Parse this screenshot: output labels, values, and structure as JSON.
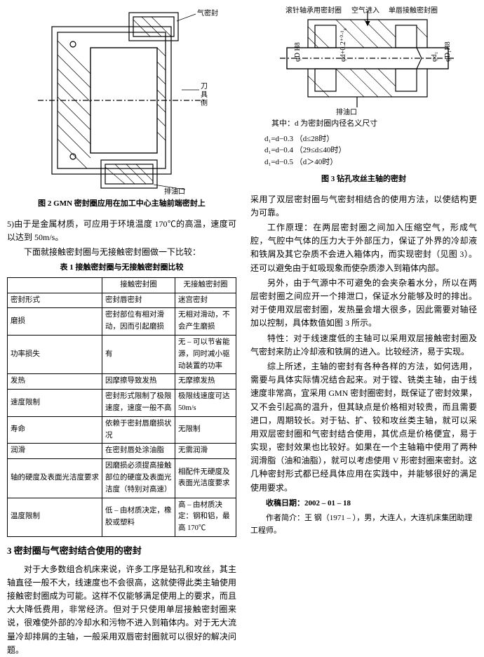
{
  "left": {
    "fig2": {
      "labels": {
        "qimifeng": "气密封",
        "daojuce": "刀具侧",
        "paiyoukou": "排油口"
      },
      "caption": "图 2  GMN 密封圈应用在加工中心主轴前端密封上",
      "stroke": "#000000"
    },
    "p5": "5)由于是金属材质，可应用于环境温度 170℃的高温，速度可以达到 50m/s。",
    "p6": "下面就接触密封圈与无接触密封圈做一下比较：",
    "table1": {
      "title": "表 1  接触密封圈与无接触密封圈比较",
      "header": [
        "",
        "接触密封圈",
        "无接触密封圈"
      ],
      "rows": [
        [
          "密封形式",
          "密封唇密封",
          "迷宫密封"
        ],
        [
          "磨损",
          "密封部位有相对滑动，因而引起磨损",
          "无相对滑动，不会产生磨损"
        ],
        [
          "功率损失",
          "有",
          "无 – 可以节省能源，同时减小驱动装置的功率"
        ],
        [
          "发热",
          "因摩擦导致发热",
          "无摩擦发热"
        ],
        [
          "速度限制",
          "密封形式限制了极限速度，速度一般不高",
          "极限线速度可达 50m/s"
        ],
        [
          "寿命",
          "依赖于密封唇磨损状况",
          "无限制"
        ],
        [
          "润滑",
          "在密封唇处涂油脂",
          "无需润滑"
        ],
        [
          "轴的硬度及表面光洁度要求",
          "因磨损必须提高接触部位的硬度及表面光洁度（特别对高速）",
          "相配件无硬度及表面光洁度要求"
        ],
        [
          "温度限制",
          "低 – 由材质决定，橡胶或塑料",
          "高 – 由材质决定：钢和铝，最高 170℃"
        ]
      ]
    },
    "section3": {
      "title": "3  密封圈与气密封结合使用的密封",
      "p1": "对于大多数组合机床来说，许多工序是钻孔和攻丝，其主轴直径一般不大，线速度也不会很高，这就使得此类主轴使用接触密封圈成为可能。这样不仅能够满足使用上的要求，而且大大降低费用，非常经济。但对于只使用单层接触密封圈来说，很难使外部的冷却水和污物不进入到箱体内。对于无大流量冷却排屑的主轴，一般采用双唇密封圈就可以很好的解决问题。"
    }
  },
  "right": {
    "fig3": {
      "labels": {
        "gunzhen": "滚针轴承用密封圈",
        "kongqi": "空气进入",
        "danchun": "单唇接触密封圈",
        "paiyoukou": "排油口",
        "dH8": "φD H8",
        "d02": "φd+0.2⁺⁰·¹₀",
        "d1": "φd₁",
        "D1H8": "φD₁H8"
      },
      "note_head": "其中：d 为密封圈内径名义尺寸",
      "formula1": "d₁=d−0.3   （d≤28时）",
      "formula2": "d₁=d−0.4   （29≤d≤40时）",
      "formula3": "d₁=d−0.5   （d＞40时）",
      "caption": "图 3  钻孔攻丝主轴的密封",
      "stroke": "#000000"
    },
    "p1": "采用了双层密封圈与气密封相结合的使用方法，以使结构更为可靠。",
    "p2": "工作原理：在两层密封圈之间加入压缩空气，形成气腔，气腔中气体的压力大于外部压力，保证了外界的冷却液和铁屑及其它杂质不会进入箱体内，而实现密封（见图 3）。还可以避免由于虹吸现象而使杂质渗入到箱体内部。",
    "p3": "另外，由于气源中不可避免的会夹杂着水分，所以在两层密封圈之间应开一个排泄口，保证水分能够及时的排出。对于使用双层密封圈，发热量会增大很多，因此需要对轴径加以控制，具体数值如图 3 所示。",
    "p4": "特性：对于线速度低的主轴可以采用双层接触密封圈及气密封来防止冷却液和铁屑的进入。比较经济，易于实现。",
    "p5": "综上所述，主轴的密封有各种各样的方法，如何选用，需要与具体实际情况结合起来。对于镗、铣类主轴，由于线速度非常高，宜采用 GMN 密封圈密封，既保证了密封效果，又不会引起高的温升，但其缺点是价格相对较贵，而且需要进口，周期较长。对于钻、扩、铰和攻丝类主轴，就可以采用双层密封圈和气密封结合使用，其优点是价格便宜，易于实现，密封效果也比较好。如果在一个主轴箱中使用了两种润滑脂（油和油脂），就可以考虑使用 V 形密封圈来密封。这几种密封形式都已经具体应用在实践中，并能够很好的满足使用要求。",
    "date": "收稿日期：2002 – 01 – 18",
    "author": "作者简介：王  钢（1971 – ），男，大连人，大连机床集团助理工程师。"
  }
}
